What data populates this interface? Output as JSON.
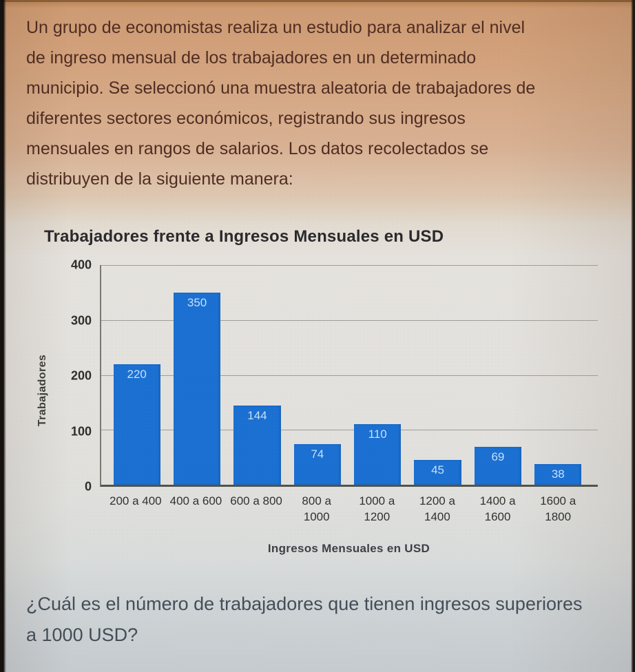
{
  "intro": {
    "text": "Un grupo de economistas realiza un estudio para analizar el nivel\nde ingreso mensual de los trabajadores en un determinado\nmunicipio. Se seleccionó una muestra aleatoria de trabajadores de\ndiferentes sectores económicos, registrando sus ingresos\nmensuales en rangos de salarios. Los datos recolectados se\ndistribuyen de la siguiente manera:"
  },
  "chart_data": {
    "type": "bar",
    "title": "Trabajadores frente a Ingresos Mensuales en USD",
    "xlabel": "Ingresos Mensuales en USD",
    "ylabel": "Trabajadores",
    "categories": [
      "200 a 400",
      "400 a 600",
      "600 a 800",
      "800 a\n1000",
      "1000 a\n1200",
      "1200 a\n1400",
      "1400 a\n1600",
      "1600 a\n1800"
    ],
    "values": [
      220,
      350,
      144,
      74,
      110,
      45,
      69,
      38
    ],
    "ylim": [
      0,
      400
    ],
    "yticks": [
      0,
      100,
      200,
      300,
      400
    ],
    "grid": true,
    "legend_position": "none",
    "bar_color": "#176fd4",
    "bar_label_color": "#c9e4fa"
  },
  "question": {
    "text": "¿Cuál es el número de trabajadores que tienen ingresos superiores\na 1000 USD?"
  }
}
